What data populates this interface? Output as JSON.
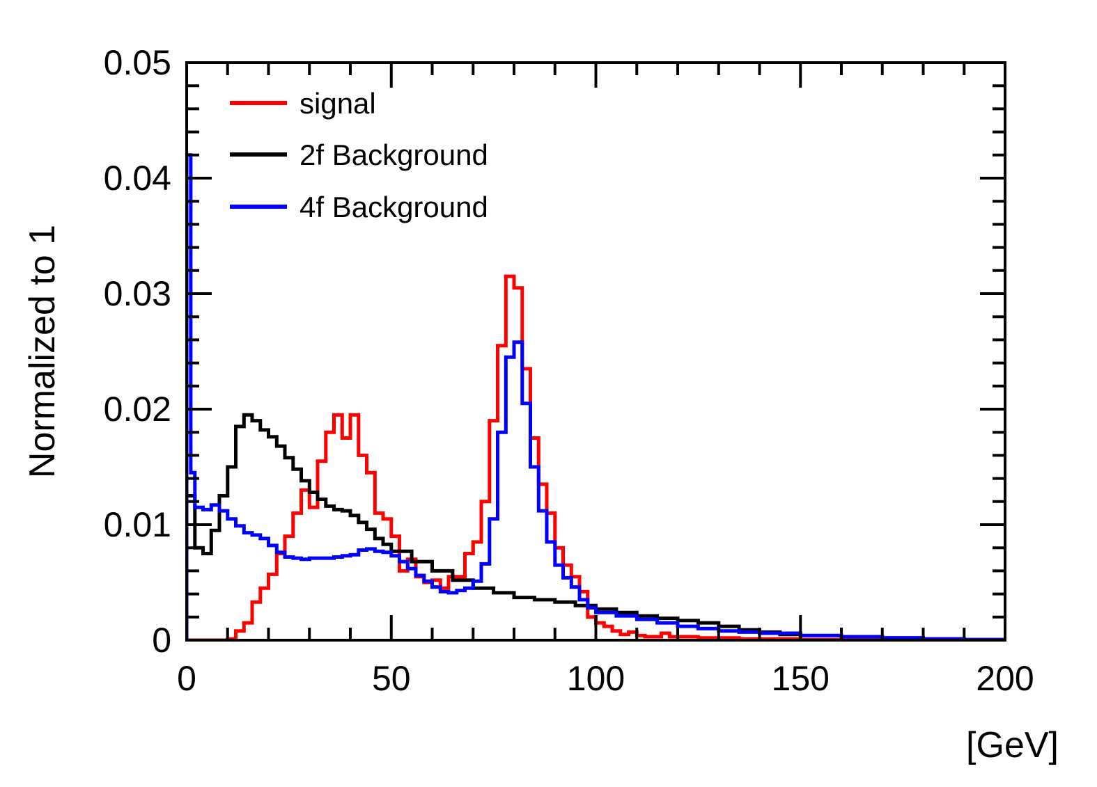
{
  "chart_data": {
    "type": "line",
    "style": "step-histogram",
    "title": "",
    "xlabel": "[GeV]",
    "ylabel": "Normalized to 1",
    "xlim": [
      0,
      200
    ],
    "ylim": [
      0,
      0.05
    ],
    "bin_width": 2,
    "x_ticks": [
      0,
      50,
      100,
      150,
      200
    ],
    "y_ticks": [
      0,
      0.01,
      0.02,
      0.03,
      0.04,
      0.05
    ],
    "x_tick_labels": [
      "0",
      "50",
      "100",
      "150",
      "200"
    ],
    "y_tick_labels": [
      "0",
      "0.01",
      "0.02",
      "0.03",
      "0.04",
      "0.05"
    ],
    "legend_position": "top-left",
    "series": [
      {
        "name": "signal",
        "color": "#ff0000",
        "x": [
          0,
          2,
          4,
          6,
          8,
          10,
          12,
          14,
          16,
          18,
          20,
          22,
          24,
          26,
          28,
          30,
          32,
          34,
          36,
          38,
          40,
          42,
          44,
          46,
          48,
          50,
          52,
          54,
          56,
          58,
          60,
          62,
          64,
          66,
          68,
          70,
          72,
          74,
          76,
          78,
          80,
          82,
          84,
          86,
          88,
          90,
          92,
          94,
          96,
          98,
          100,
          102,
          104,
          106,
          108,
          110,
          112,
          114,
          116,
          118,
          120,
          125,
          130,
          135,
          140,
          150,
          160,
          170,
          180,
          190,
          200
        ],
        "values": [
          0,
          0,
          0,
          0,
          0,
          0.0001,
          0.0008,
          0.0015,
          0.0033,
          0.0045,
          0.0057,
          0.0075,
          0.009,
          0.011,
          0.013,
          0.0115,
          0.0155,
          0.018,
          0.0195,
          0.0175,
          0.0195,
          0.016,
          0.0145,
          0.011,
          0.0105,
          0.009,
          0.006,
          0.007,
          0.0055,
          0.005,
          0.0052,
          0.0045,
          0.0055,
          0.0055,
          0.0075,
          0.0085,
          0.012,
          0.019,
          0.0255,
          0.0315,
          0.0305,
          0.0235,
          0.0175,
          0.0135,
          0.011,
          0.008,
          0.0065,
          0.0055,
          0.0042,
          0.002,
          0.0015,
          0.0012,
          0.0008,
          0.0005,
          0.0007,
          0.0004,
          0.0003,
          0.0003,
          0.0006,
          0.0003,
          0.0003,
          0.0002,
          0.0002,
          0.0001,
          0.0001,
          5e-05,
          5e-05,
          3e-05,
          2e-05,
          1e-05,
          1e-05
        ]
      },
      {
        "name": "2f Background",
        "color": "#000000",
        "x": [
          0,
          2,
          4,
          6,
          8,
          10,
          12,
          14,
          16,
          18,
          20,
          22,
          24,
          26,
          28,
          30,
          32,
          34,
          36,
          38,
          40,
          42,
          44,
          46,
          48,
          50,
          55,
          60,
          65,
          70,
          75,
          80,
          85,
          90,
          95,
          100,
          105,
          110,
          115,
          120,
          125,
          130,
          135,
          140,
          145,
          150,
          160,
          170,
          180,
          190,
          200
        ],
        "values": [
          0.0125,
          0.008,
          0.0075,
          0.0095,
          0.0125,
          0.015,
          0.0185,
          0.0195,
          0.019,
          0.0182,
          0.0176,
          0.0168,
          0.0158,
          0.0148,
          0.0138,
          0.0128,
          0.0122,
          0.0116,
          0.0113,
          0.0112,
          0.0108,
          0.0102,
          0.0096,
          0.0088,
          0.0083,
          0.0077,
          0.0068,
          0.006,
          0.0052,
          0.0045,
          0.0041,
          0.0037,
          0.0035,
          0.0033,
          0.003,
          0.0027,
          0.0024,
          0.0021,
          0.0019,
          0.0017,
          0.0015,
          0.0012,
          0.0009,
          0.0007,
          0.0005,
          0.0004,
          0.0003,
          0.0002,
          0.0001,
          5e-05,
          3e-05
        ]
      },
      {
        "name": "4f Background",
        "color": "#0000ff",
        "x": [
          0,
          1,
          2,
          4,
          6,
          8,
          10,
          12,
          14,
          16,
          18,
          20,
          22,
          24,
          26,
          28,
          30,
          32,
          34,
          36,
          38,
          40,
          42,
          44,
          46,
          48,
          50,
          52,
          54,
          56,
          58,
          60,
          62,
          64,
          66,
          68,
          70,
          72,
          74,
          76,
          78,
          80,
          82,
          84,
          86,
          88,
          90,
          92,
          94,
          96,
          98,
          100,
          105,
          110,
          115,
          120,
          125,
          130,
          135,
          140,
          150,
          160,
          170,
          180,
          190,
          200
        ],
        "values": [
          0.042,
          0.0145,
          0.0115,
          0.0113,
          0.0117,
          0.0112,
          0.0105,
          0.0099,
          0.0093,
          0.0091,
          0.0088,
          0.0082,
          0.0076,
          0.0072,
          0.0071,
          0.007,
          0.0071,
          0.0071,
          0.0071,
          0.0072,
          0.0073,
          0.0074,
          0.0078,
          0.0079,
          0.0077,
          0.0076,
          0.0073,
          0.0068,
          0.0062,
          0.0056,
          0.0051,
          0.0046,
          0.0042,
          0.0041,
          0.0043,
          0.0045,
          0.0051,
          0.0066,
          0.0105,
          0.018,
          0.0245,
          0.0258,
          0.0205,
          0.015,
          0.0112,
          0.0085,
          0.0065,
          0.0054,
          0.0046,
          0.0035,
          0.0028,
          0.0024,
          0.0021,
          0.0018,
          0.0015,
          0.0012,
          0.001,
          0.0008,
          0.0007,
          0.0006,
          0.0004,
          0.0003,
          0.0002,
          0.0001,
          5e-05,
          3e-05
        ]
      }
    ]
  }
}
